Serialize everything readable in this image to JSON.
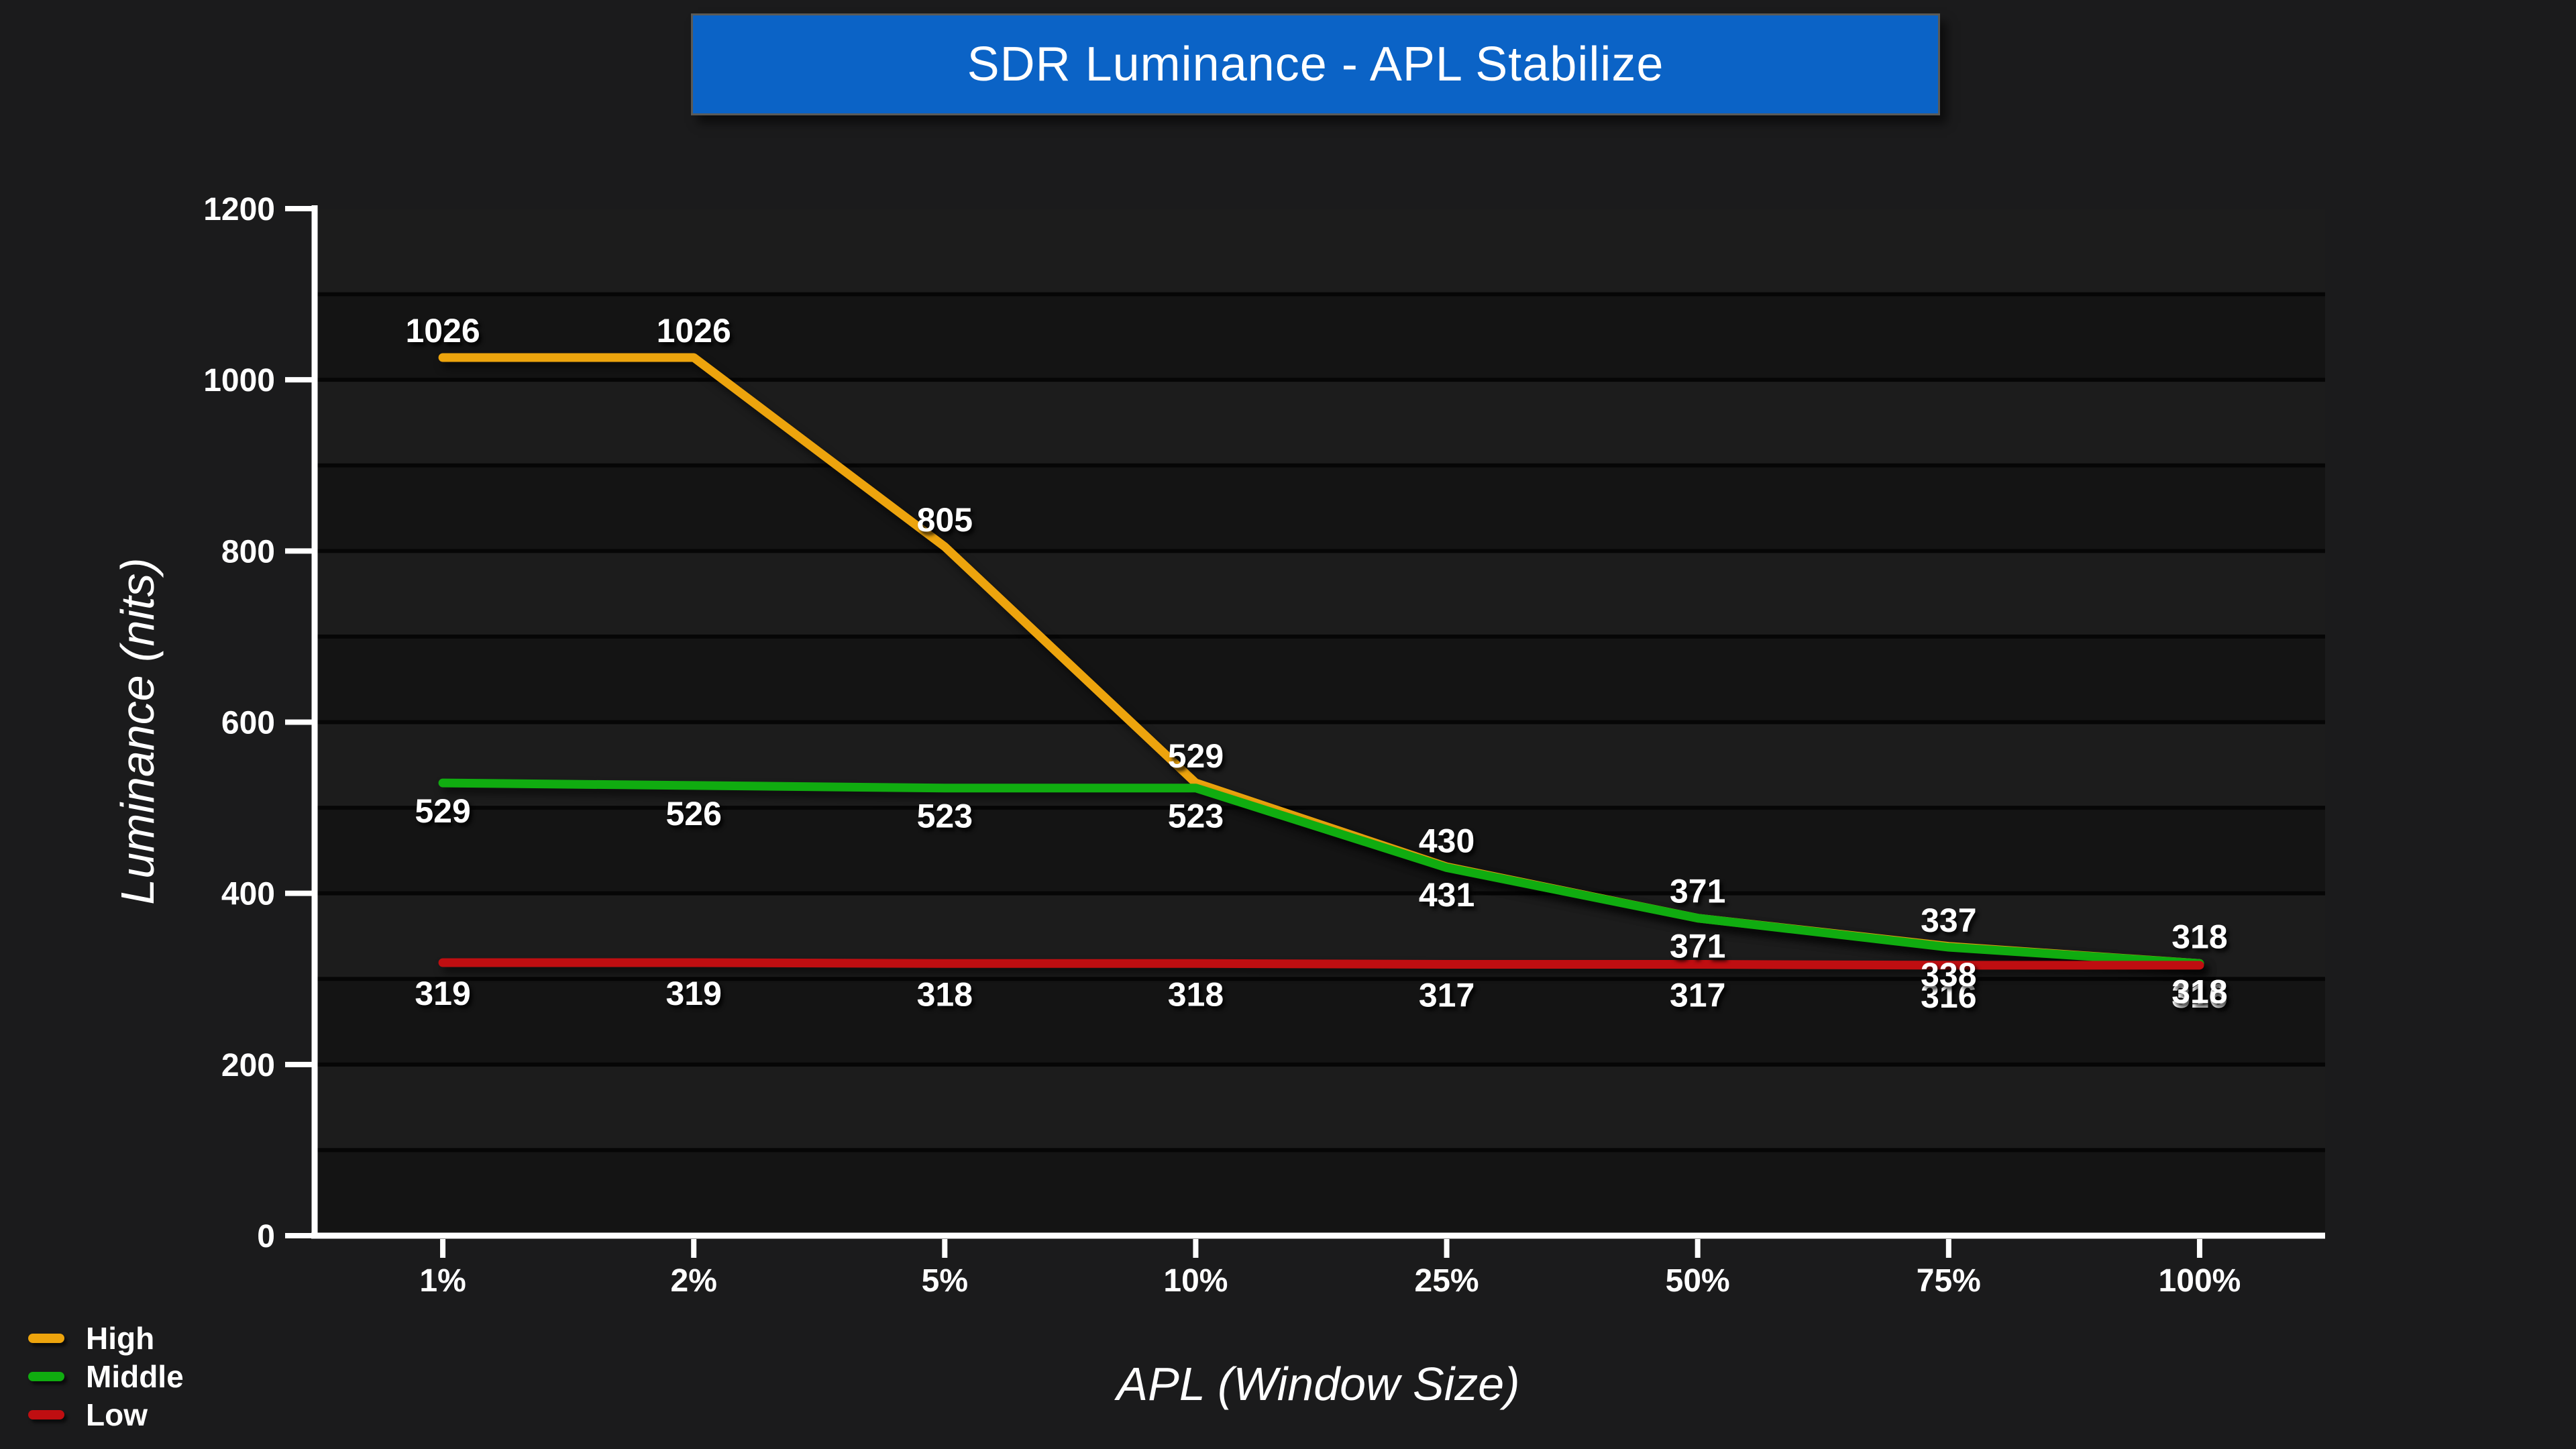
{
  "title": "SDR Luminance - APL Stabilize",
  "colors": {
    "background": "#1B1B1C",
    "plot_band_light": "#1C1C1C",
    "plot_band_dark": "#141414",
    "gridline": "#060606",
    "axis": "#FFFFFF",
    "title_bg": "#0B63C6",
    "title_border": "#5A5A57",
    "high": "#EDA40D",
    "middle": "#10AC10",
    "low": "#BF0E11",
    "text": "#FFFFFF"
  },
  "chart_data": {
    "type": "line",
    "title": "SDR Luminance - APL Stabilize",
    "xlabel": "APL (Window Size)",
    "ylabel": "Luminance (nits)",
    "categories": [
      "1%",
      "2%",
      "5%",
      "10%",
      "25%",
      "50%",
      "75%",
      "100%"
    ],
    "series": [
      {
        "name": "High",
        "color": "#EDA40D",
        "values": [
          1026,
          1026,
          805,
          529,
          431,
          371,
          338,
          318
        ],
        "label_side": [
          "above",
          "above",
          "above",
          "above",
          "below",
          "below",
          "below",
          "below"
        ]
      },
      {
        "name": "Middle",
        "color": "#10AC10",
        "values": [
          529,
          526,
          523,
          523,
          430,
          371,
          337,
          318
        ],
        "label_side": [
          "below",
          "below",
          "below",
          "below",
          "above",
          "above",
          "above",
          "above"
        ]
      },
      {
        "name": "Low",
        "color": "#BF0E11",
        "values": [
          319,
          319,
          318,
          318,
          317,
          317,
          316,
          316
        ],
        "label_side": [
          "low-below",
          "low-below",
          "low-below",
          "low-below",
          "low-below",
          "low-below",
          "low-below",
          "low-below"
        ]
      }
    ],
    "ylim": [
      0,
      1200
    ],
    "y_tick_interval": 200,
    "y_minor_interval": 100,
    "y_tick_labels": [
      "0",
      "200",
      "400",
      "600",
      "800",
      "1000",
      "1200"
    ],
    "grid": "horizontal-alternating-bands",
    "data_labels": true,
    "legend_position": "bottom-left",
    "legend": [
      "High",
      "Middle",
      "Low"
    ]
  }
}
